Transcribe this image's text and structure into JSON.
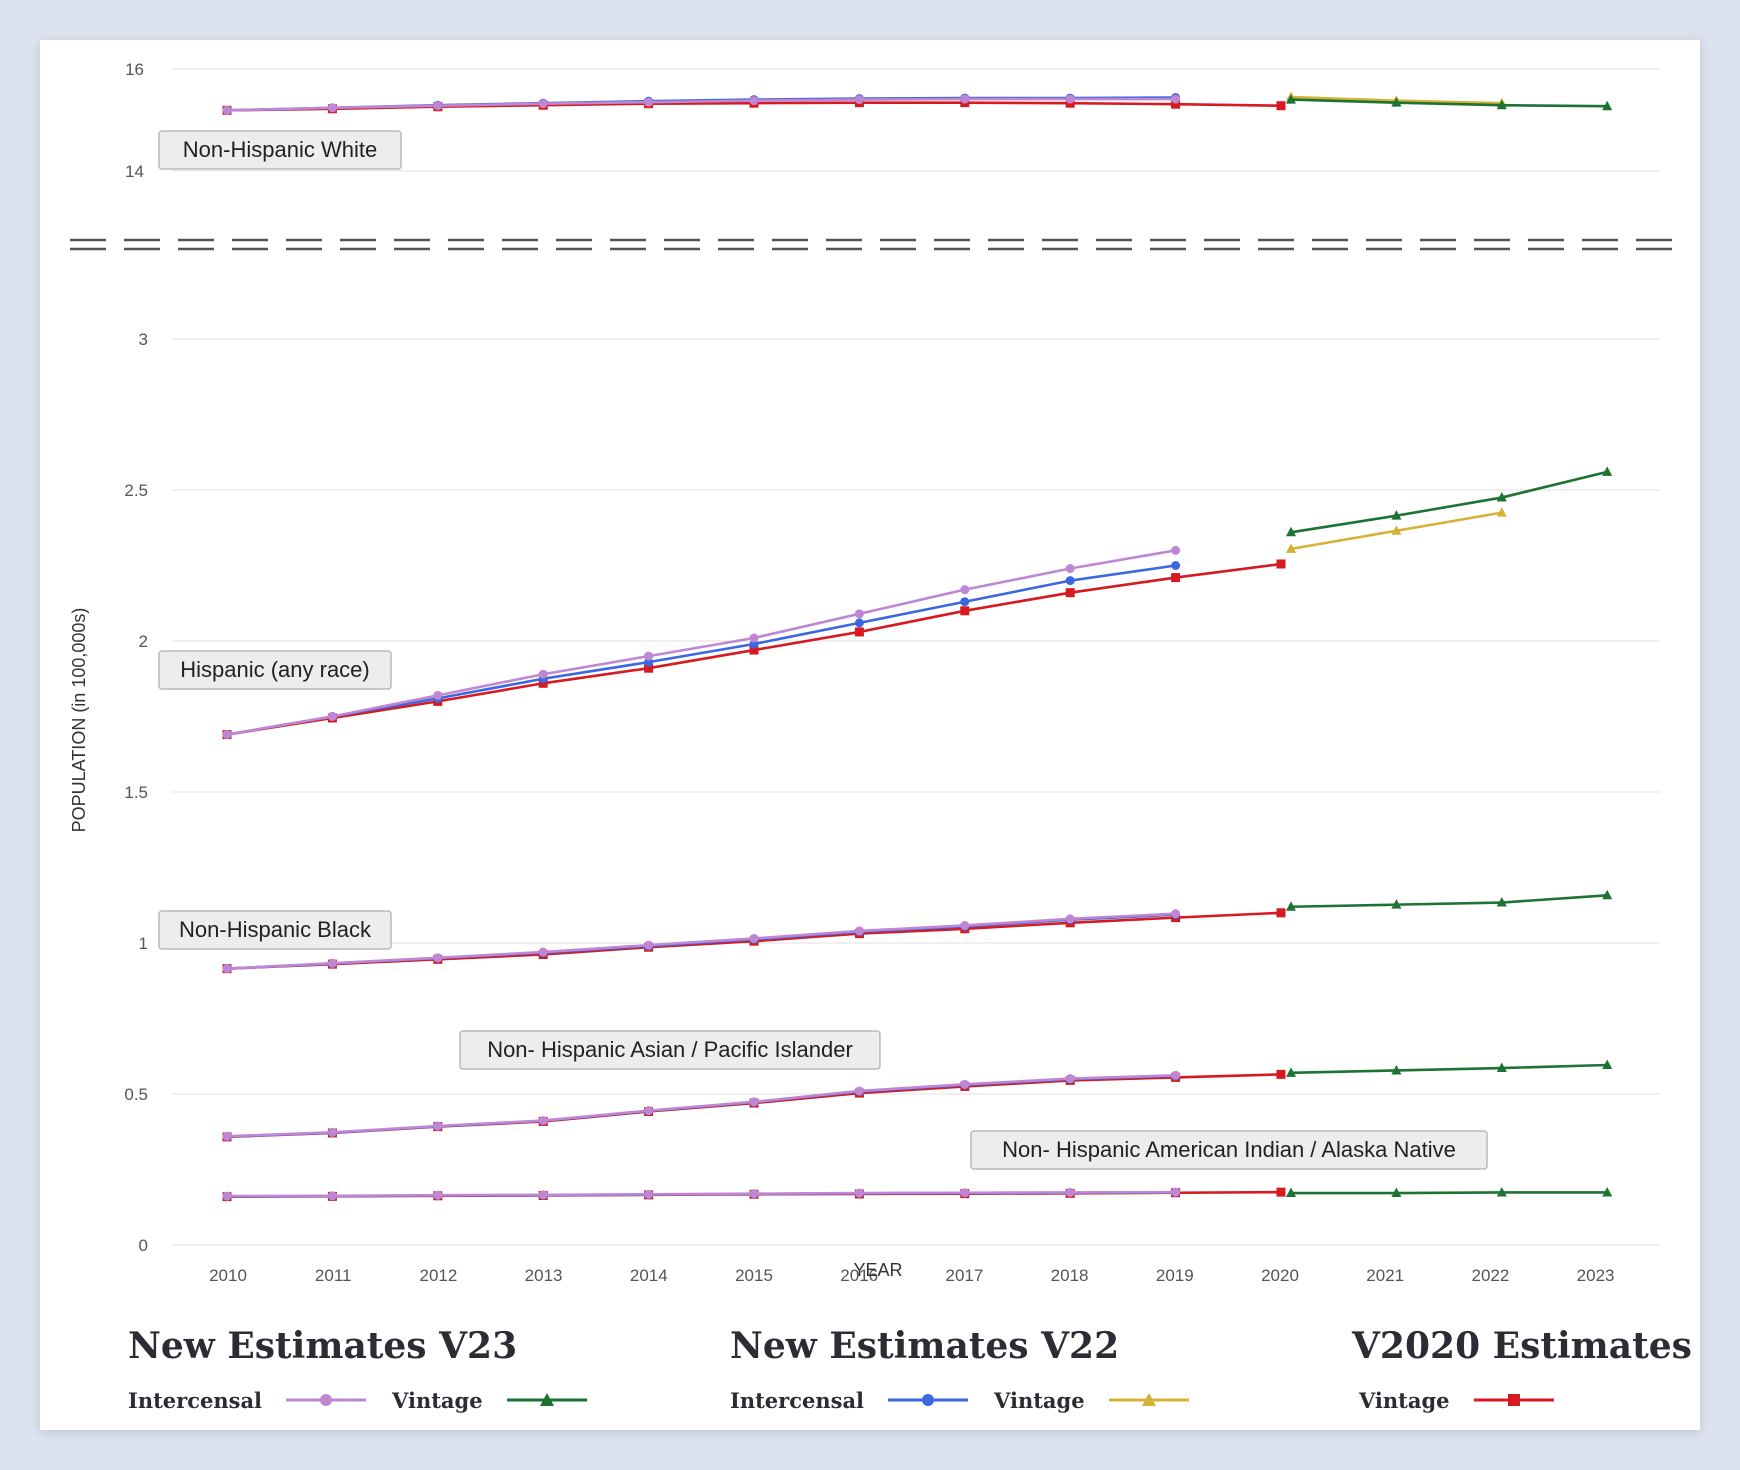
{
  "chart_data": {
    "type": "line",
    "xlabel": "YEAR",
    "ylabel": "POPULATION (in 100,000s)",
    "x": [
      2010,
      2011,
      2012,
      2013,
      2014,
      2015,
      2016,
      2017,
      2018,
      2019,
      2020,
      2021,
      2022,
      2023
    ],
    "upper_panel": {
      "ylim": [
        14,
        16
      ],
      "yticks": [
        "16",
        "14"
      ]
    },
    "lower_panel": {
      "ylim": [
        0,
        3
      ],
      "yticks": [
        "3",
        "2.5",
        "2",
        "1.5",
        "1",
        "0.5",
        "0"
      ]
    },
    "axis_break": true,
    "grid": true,
    "colors": {
      "v23_intercensal": "#bf86d4",
      "v23_vintage": "#1c7332",
      "v22_intercensal": "#3b67e0",
      "v22_vintage": "#d4b236",
      "v2020_vintage": "#d71920"
    },
    "groups": [
      {
        "label": "Non-Hispanic White",
        "panel": "upper",
        "series": {
          "v23_intercensal": [
            15.19,
            15.24,
            15.28,
            15.32,
            15.35,
            15.38,
            15.4,
            15.41,
            15.41,
            15.41
          ],
          "v22_intercensal": [
            15.19,
            15.24,
            15.29,
            15.33,
            15.37,
            15.4,
            15.42,
            15.43,
            15.43,
            15.44
          ],
          "v2020_vintage": [
            15.19,
            15.22,
            15.26,
            15.29,
            15.32,
            15.33,
            15.34,
            15.34,
            15.33,
            15.31,
            15.28
          ],
          "v22_vintage": [
            15.45,
            15.38,
            15.33
          ],
          "v23_vintage": [
            15.4,
            15.34,
            15.29,
            15.27
          ]
        }
      },
      {
        "label": "Hispanic (any race)",
        "panel": "lower",
        "series": {
          "v23_intercensal": [
            1.69,
            1.75,
            1.82,
            1.89,
            1.95,
            2.01,
            2.09,
            2.17,
            2.24,
            2.3
          ],
          "v22_intercensal": [
            1.69,
            1.75,
            1.81,
            1.875,
            1.93,
            1.99,
            2.06,
            2.13,
            2.2,
            2.25
          ],
          "v2020_vintage": [
            1.69,
            1.745,
            1.8,
            1.86,
            1.91,
            1.97,
            2.03,
            2.1,
            2.16,
            2.21,
            2.255
          ],
          "v22_vintage": [
            2.305,
            2.365,
            2.425
          ],
          "v23_vintage": [
            2.36,
            2.415,
            2.475,
            2.56
          ]
        }
      },
      {
        "label": "Non-Hispanic Black",
        "panel": "lower",
        "series": {
          "v23_intercensal": [
            0.915,
            0.933,
            0.951,
            0.97,
            0.993,
            1.015,
            1.04,
            1.058,
            1.08,
            1.097
          ],
          "v22_intercensal": [
            0.915,
            0.932,
            0.95,
            0.968,
            0.99,
            1.012,
            1.037,
            1.055,
            1.077,
            1.094
          ],
          "v2020_vintage": [
            0.915,
            0.93,
            0.946,
            0.962,
            0.986,
            1.006,
            1.031,
            1.047,
            1.067,
            1.084,
            1.1
          ],
          "v23_vintage": [
            1.12,
            1.127,
            1.134,
            1.158
          ]
        }
      },
      {
        "label": "Non- Hispanic Asian / Pacific Islander",
        "panel": "lower",
        "series": {
          "v23_intercensal": [
            0.36,
            0.373,
            0.394,
            0.412,
            0.445,
            0.474,
            0.51,
            0.532,
            0.551,
            0.562
          ],
          "v22_intercensal": [
            0.359,
            0.372,
            0.393,
            0.411,
            0.444,
            0.473,
            0.508,
            0.53,
            0.549,
            0.56
          ],
          "v2020_vintage": [
            0.358,
            0.371,
            0.392,
            0.409,
            0.442,
            0.47,
            0.503,
            0.525,
            0.545,
            0.555,
            0.565
          ],
          "v23_vintage": [
            0.57,
            0.578,
            0.586,
            0.596
          ]
        }
      },
      {
        "label": "Non- Hispanic American Indian / Alaska Native",
        "panel": "lower",
        "series": {
          "v23_intercensal": [
            0.162,
            0.163,
            0.165,
            0.166,
            0.168,
            0.17,
            0.172,
            0.173,
            0.174,
            0.175
          ],
          "v22_intercensal": [
            0.161,
            0.162,
            0.164,
            0.165,
            0.167,
            0.169,
            0.171,
            0.172,
            0.173,
            0.174
          ],
          "v2020_vintage": [
            0.16,
            0.161,
            0.163,
            0.164,
            0.166,
            0.168,
            0.169,
            0.17,
            0.171,
            0.173,
            0.175
          ],
          "v23_vintage": [
            0.172,
            0.172,
            0.174,
            0.174
          ]
        }
      }
    ],
    "legend": [
      {
        "title": "New Estimates V23",
        "items": [
          {
            "label": "Intercensal",
            "key": "v23_intercensal"
          },
          {
            "label": "Vintage",
            "key": "v23_vintage"
          }
        ]
      },
      {
        "title": "New Estimates V22",
        "items": [
          {
            "label": "Intercensal",
            "key": "v22_intercensal"
          },
          {
            "label": "Vintage",
            "key": "v22_vintage"
          }
        ]
      },
      {
        "title": "V2020 Estimates",
        "items": [
          {
            "label": "Vintage",
            "key": "v2020_vintage"
          }
        ]
      }
    ]
  }
}
